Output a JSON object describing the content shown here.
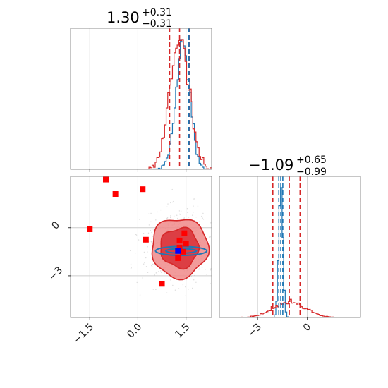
{
  "chart_data": {
    "type": "corner",
    "parameters": [
      {
        "title_value": "1.30",
        "title_upper": "+0.31",
        "title_lower": "−0.31",
        "range": [
          -2.1,
          2.3
        ],
        "ticks": [
          -1.5,
          0.0,
          1.5
        ],
        "tick_labels": [
          "−1.5",
          "0.0",
          "1.5"
        ],
        "histogram": {
          "type": "step",
          "red_series": {
            "center": 1.3,
            "sigma": 0.3
          },
          "blue_series": {
            "center": 1.4,
            "sigma": 0.22
          },
          "red_quantile_lines": [
            0.99,
            1.3,
            1.61
          ],
          "blue_quantile_lines": [
            1.58,
            1.62
          ]
        }
      },
      {
        "title_value": "−1.09",
        "title_upper": "+0.65",
        "title_lower": "−0.99",
        "range": [
          -5.3,
          3.2
        ],
        "ticks": [
          -3,
          0
        ],
        "tick_labels": [
          "−3",
          "0"
        ],
        "histogram": {
          "type": "step",
          "red_series": {
            "center": -1.09,
            "sigma": 0.95
          },
          "blue_series": {
            "center": -1.6,
            "sigma": 0.12
          },
          "red_quantile_lines": [
            -2.08,
            -1.09,
            -0.44
          ],
          "blue_quantile_lines": [
            -1.72,
            -1.6,
            -1.48
          ]
        }
      }
    ],
    "scatter_panel": {
      "x_range": [
        -2.1,
        2.3
      ],
      "y_range": [
        -5.6,
        3.2
      ],
      "x_ticks": [
        -1.5,
        0.0,
        1.5
      ],
      "y_ticks": [
        -3,
        0
      ],
      "y_tick_labels": [
        "−3",
        "0"
      ],
      "red_square_points": [
        [
          -1.0,
          3.0
        ],
        [
          -0.7,
          2.1
        ],
        [
          0.15,
          2.4
        ],
        [
          -1.5,
          -0.1
        ],
        [
          0.25,
          -0.75
        ],
        [
          1.45,
          -0.35
        ],
        [
          1.3,
          -0.8
        ],
        [
          1.5,
          -1.0
        ],
        [
          1.25,
          -1.9
        ],
        [
          0.75,
          -3.5
        ],
        [
          1.4,
          -1.5
        ],
        [
          1.3,
          -1.25
        ]
      ],
      "blue_square_point": [
        1.25,
        -1.45
      ],
      "red_contour_levels": [
        "1-sigma",
        "2-sigma"
      ],
      "blue_ellipse": {
        "center": [
          1.35,
          -1.45
        ],
        "rx": 0.8,
        "ry": 0.28
      },
      "red_contour_center": [
        1.3,
        -1.25
      ]
    },
    "colors": {
      "red": "#d62728",
      "red_fill_light": "#f08a8a",
      "red_fill_dark": "#d9343b",
      "blue": "#1f77b4",
      "blue_marker": "#0000ff",
      "red_marker": "#ff0000",
      "grid": "#cccccc",
      "frame": "#8c8c8c"
    }
  }
}
